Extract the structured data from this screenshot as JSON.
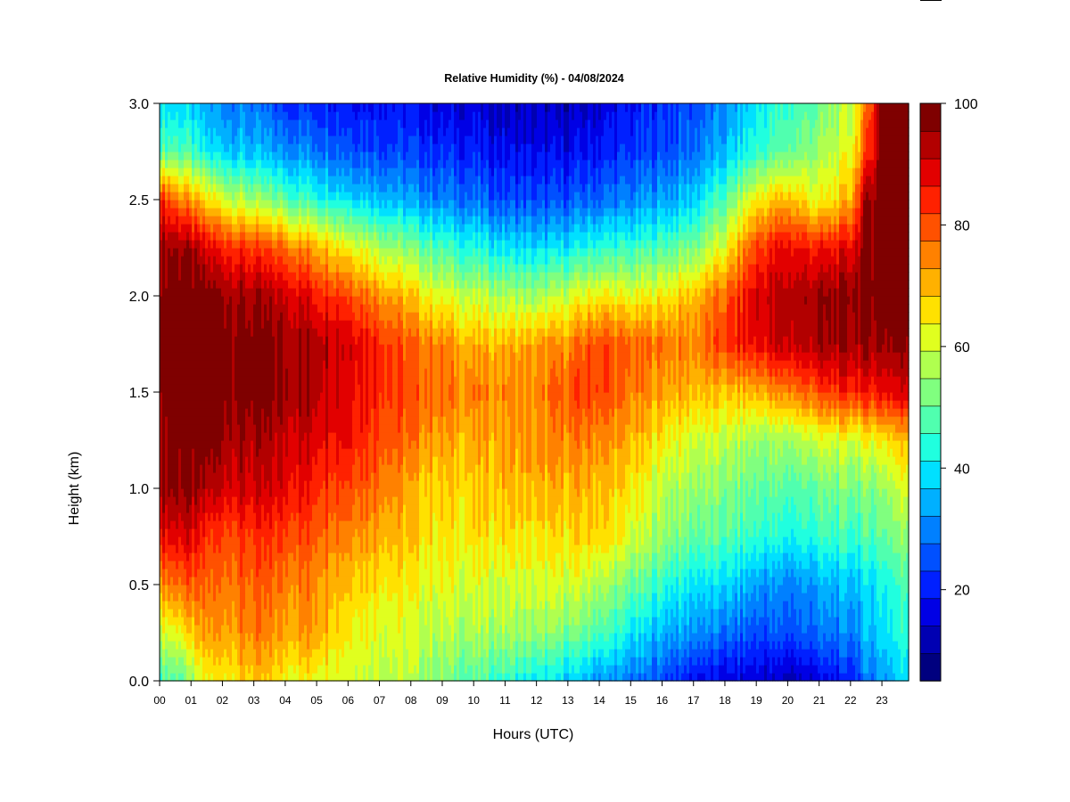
{
  "chart_data": {
    "type": "heatmap",
    "title": "Relative Humidity (%) - 04/08/2024",
    "xlabel": "Hours (UTC)",
    "ylabel": "Height (km)",
    "x_ticks": [
      "00",
      "01",
      "02",
      "03",
      "04",
      "05",
      "06",
      "07",
      "08",
      "09",
      "10",
      "11",
      "12",
      "13",
      "14",
      "15",
      "16",
      "17",
      "18",
      "19",
      "20",
      "21",
      "22",
      "23"
    ],
    "x_range": [
      0,
      23.85
    ],
    "y_ticks": [
      "0.0",
      "0.5",
      "1.0",
      "1.5",
      "2.0",
      "2.5",
      "3.0"
    ],
    "y_range": [
      0,
      3.0
    ],
    "colorbar": {
      "range": [
        5,
        100
      ],
      "ticks": [
        "20",
        "40",
        "60",
        "80",
        "100"
      ],
      "colors": [
        "#00007f",
        "#0000b2",
        "#0000e5",
        "#0020ff",
        "#0050ff",
        "#0080ff",
        "#00b0ff",
        "#00e0ff",
        "#20ffdf",
        "#50ffaf",
        "#80ff7f",
        "#b0ff4f",
        "#e0ff1f",
        "#ffe100",
        "#ffb100",
        "#ff8100",
        "#ff5100",
        "#ff2100",
        "#e20000",
        "#b20000",
        "#7f0000"
      ]
    },
    "x_hours": [
      0,
      0.8,
      1.5,
      3,
      4,
      5,
      6,
      7,
      8,
      9,
      10,
      11,
      12,
      13,
      14,
      15,
      16,
      17,
      18,
      19,
      20,
      21,
      22,
      22.5,
      23,
      23.85
    ],
    "y_km": [
      0,
      0.25,
      0.5,
      0.75,
      1.0,
      1.25,
      1.5,
      1.75,
      2.0,
      2.25,
      2.5,
      2.75,
      3.0
    ],
    "values": [
      [
        48,
        50,
        62,
        68,
        64,
        63,
        62,
        60,
        57,
        52,
        48,
        45,
        40,
        38,
        32,
        28,
        25,
        18,
        15,
        15,
        12,
        15,
        20,
        28,
        32,
        40
      ],
      [
        60,
        65,
        72,
        75,
        72,
        74,
        65,
        62,
        60,
        57,
        56,
        56,
        54,
        52,
        48,
        40,
        35,
        32,
        28,
        25,
        25,
        28,
        30,
        35,
        40,
        45
      ],
      [
        75,
        78,
        77,
        78,
        76,
        75,
        70,
        67,
        63,
        62,
        60,
        60,
        60,
        60,
        57,
        50,
        45,
        40,
        38,
        33,
        30,
        33,
        36,
        38,
        42,
        48
      ],
      [
        88,
        90,
        82,
        82,
        82,
        80,
        76,
        72,
        68,
        65,
        65,
        66,
        64,
        66,
        68,
        60,
        55,
        50,
        48,
        45,
        42,
        45,
        46,
        47,
        50,
        55
      ],
      [
        96,
        97,
        92,
        90,
        89,
        85,
        82,
        78,
        70,
        67,
        68,
        70,
        70,
        70,
        70,
        65,
        58,
        55,
        52,
        50,
        48,
        50,
        52,
        52,
        55,
        62
      ],
      [
        98,
        98,
        98,
        93,
        92,
        90,
        88,
        82,
        76,
        72,
        70,
        72,
        72,
        75,
        75,
        70,
        65,
        60,
        58,
        55,
        55,
        60,
        60,
        62,
        65,
        70
      ],
      [
        99,
        99,
        99,
        98,
        96,
        94,
        90,
        85,
        80,
        77,
        75,
        75,
        74,
        80,
        82,
        75,
        72,
        70,
        68,
        70,
        75,
        80,
        85,
        85,
        88,
        90
      ],
      [
        99,
        99,
        99,
        98,
        95,
        95,
        92,
        85,
        78,
        75,
        70,
        70,
        72,
        74,
        82,
        78,
        77,
        75,
        82,
        88,
        92,
        94,
        95,
        95,
        96,
        97
      ],
      [
        99,
        99,
        98,
        94,
        92,
        87,
        82,
        75,
        68,
        62,
        58,
        57,
        55,
        60,
        65,
        62,
        65,
        70,
        78,
        90,
        93,
        95,
        97,
        99,
        99,
        99
      ],
      [
        96,
        96,
        88,
        82,
        78,
        72,
        66,
        58,
        52,
        47,
        43,
        40,
        38,
        40,
        45,
        45,
        48,
        52,
        62,
        82,
        88,
        85,
        88,
        98,
        99,
        99
      ],
      [
        85,
        75,
        66,
        55,
        50,
        45,
        40,
        37,
        33,
        30,
        28,
        25,
        24,
        25,
        28,
        30,
        33,
        38,
        48,
        65,
        70,
        62,
        70,
        95,
        99,
        99
      ],
      [
        50,
        48,
        40,
        35,
        32,
        30,
        27,
        25,
        23,
        22,
        20,
        18,
        17,
        17,
        20,
        22,
        25,
        28,
        35,
        45,
        50,
        55,
        62,
        80,
        99,
        99
      ],
      [
        40,
        38,
        32,
        28,
        22,
        22,
        20,
        20,
        18,
        15,
        15,
        12,
        12,
        12,
        15,
        18,
        22,
        25,
        30,
        40,
        45,
        50,
        58,
        75,
        99,
        99
      ]
    ]
  }
}
